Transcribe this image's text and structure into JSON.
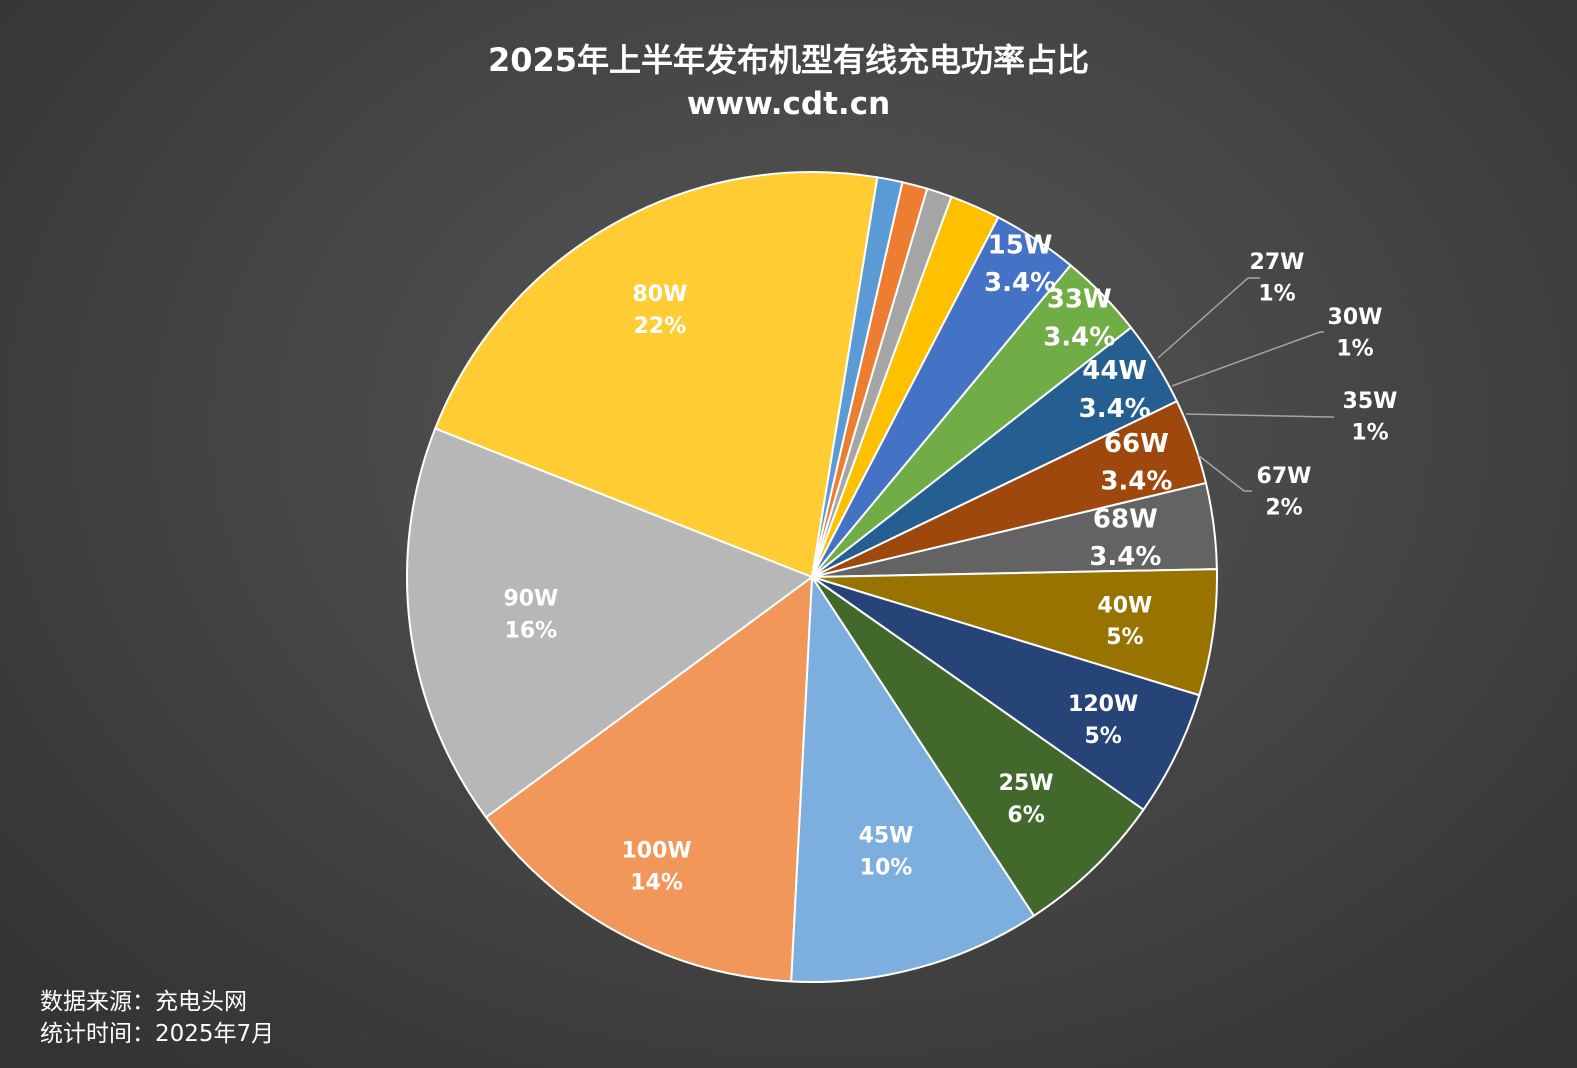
{
  "title": "2025年上半年发布机型有线充电功率占比",
  "subtitle": "www.cdt.cn",
  "footer": {
    "source": "数据来源：充电头网",
    "date": "统计时间：2025年7月"
  },
  "chart_data": {
    "type": "pie",
    "title": "2025年上半年发布机型有线充电功率占比",
    "subtitle": "www.cdt.cn",
    "slices": [
      {
        "label": "80W",
        "value_label": "22%",
        "value": 21.5,
        "color": "#ffcd33"
      },
      {
        "label": "27W",
        "value_label": "1%",
        "value": 1.0,
        "color": "#5b9bd5",
        "outside": true
      },
      {
        "label": "30W",
        "value_label": "1%",
        "value": 1.0,
        "color": "#ed7d31",
        "outside": true
      },
      {
        "label": "35W",
        "value_label": "1%",
        "value": 1.0,
        "color": "#a5a5a5",
        "outside": true
      },
      {
        "label": "67W",
        "value_label": "2%",
        "value": 2.0,
        "color": "#ffc000",
        "outside": true
      },
      {
        "label": "15W",
        "value_label": "3.4%",
        "value": 3.4,
        "color": "#4472c4"
      },
      {
        "label": "33W",
        "value_label": "3.4%",
        "value": 3.4,
        "color": "#70ad47"
      },
      {
        "label": "44W",
        "value_label": "3.4%",
        "value": 3.4,
        "color": "#255e91"
      },
      {
        "label": "66W",
        "value_label": "3.4%",
        "value": 3.4,
        "color": "#9e480e"
      },
      {
        "label": "68W",
        "value_label": "3.4%",
        "value": 3.4,
        "color": "#636363"
      },
      {
        "label": "40W",
        "value_label": "5%",
        "value": 5.0,
        "color": "#997300"
      },
      {
        "label": "120W",
        "value_label": "5%",
        "value": 5.0,
        "color": "#264478"
      },
      {
        "label": "25W",
        "value_label": "6%",
        "value": 6.0,
        "color": "#43682b"
      },
      {
        "label": "45W",
        "value_label": "10%",
        "value": 10.0,
        "color": "#7cafdd"
      },
      {
        "label": "100W",
        "value_label": "14%",
        "value": 14.0,
        "color": "#f1975a"
      },
      {
        "label": "90W",
        "value_label": "16%",
        "value": 16.0,
        "color": "#b7b7b7"
      }
    ]
  }
}
